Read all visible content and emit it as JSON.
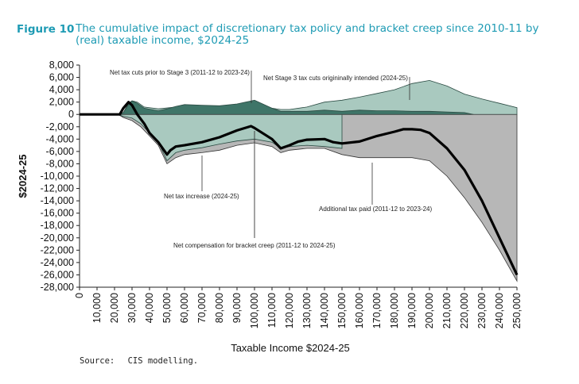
{
  "figure": {
    "number": "Figure 10",
    "title": "The cumulative impact of discretionary tax policy and bracket creep since 2010-11 by (real) taxable income, $2024-25"
  },
  "source": {
    "label": "Source:",
    "text": "CIS modelling."
  },
  "colors": {
    "grey": "#b7b7b7",
    "grey_stroke": "#333333",
    "dark_teal": "#3f7568",
    "light_teal": "#a9c9bf",
    "teal_stroke": "#2a4a42",
    "net_line": "#000000",
    "title": "#1e9bb4"
  },
  "chart_data": {
    "type": "area",
    "xlabel": "Taxable Income $2024-25",
    "ylabel": "$2024-25",
    "xlim": [
      0,
      250000
    ],
    "ylim": [
      -28000,
      8000
    ],
    "x_ticks": [
      "0",
      "10,000",
      "20,000",
      "30,000",
      "40,000",
      "50,000",
      "60,000",
      "70,000",
      "80,000",
      "90,000",
      "100,000",
      "110,000",
      "120,000",
      "130,000",
      "140,000",
      "150,000",
      "160,000",
      "170,000",
      "180,000",
      "190,000",
      "200,000",
      "210,000",
      "220,000",
      "230,000",
      "240,000",
      "250,000"
    ],
    "y_ticks": [
      "8,000",
      "6,000",
      "4,000",
      "2,000",
      "0",
      "-2,000",
      "-4,000",
      "-6,000",
      "-8,000",
      "-10,000",
      "-12,000",
      "-14,000",
      "-16,000",
      "-18,000",
      "-20,000",
      "-22,000",
      "-24,000",
      "-26,000",
      "-28,000"
    ],
    "series": [
      {
        "key": "additional_tax",
        "x": [
          0,
          22000,
          25000,
          30000,
          35000,
          40000,
          45000,
          50000,
          55000,
          60000,
          70000,
          80000,
          90000,
          100000,
          110000,
          115000,
          120000,
          130000,
          140000,
          150000,
          160000,
          170000,
          180000,
          190000,
          200000,
          210000,
          220000,
          230000,
          240000,
          250000
        ],
        "y": [
          0,
          0,
          -500,
          -1000,
          -2000,
          -3500,
          -5000,
          -8000,
          -7000,
          -6500,
          -6200,
          -5800,
          -5000,
          -4600,
          -5200,
          -6200,
          -5800,
          -5500,
          -5500,
          -6500,
          -7000,
          -7000,
          -7000,
          -7000,
          -7500,
          -10000,
          -13500,
          -17500,
          -22000,
          -27000
        ]
      },
      {
        "key": "net_tax_increase",
        "x": [
          0,
          22000,
          25000,
          30000,
          35000,
          40000,
          45000,
          50000,
          55000,
          60000,
          70000,
          80000,
          90000,
          100000,
          110000,
          115000,
          120000,
          130000,
          140000,
          150000
        ],
        "y": [
          0,
          0,
          -300,
          -600,
          -1500,
          -3000,
          -4500,
          -7500,
          -6200,
          -5800,
          -5400,
          -4800,
          -4300,
          -4000,
          -4500,
          -5500,
          -5200,
          -5000,
          -5200,
          -5500
        ]
      },
      {
        "key": "stage3_intended",
        "x": [
          0,
          22000,
          25000,
          28000,
          30000,
          33000,
          37000,
          45000,
          55000,
          70000,
          90000,
          100000,
          110000,
          115000,
          120000,
          130000,
          140000,
          150000,
          160000,
          170000,
          180000,
          190000,
          200000,
          210000,
          220000,
          230000,
          240000,
          250000
        ],
        "y": [
          0,
          0,
          300,
          1800,
          2200,
          2000,
          1200,
          900,
          1200,
          1200,
          1300,
          1500,
          1000,
          800,
          800,
          1200,
          2000,
          2300,
          2800,
          3400,
          4000,
          5000,
          5500,
          4600,
          3300,
          2500,
          1800,
          1100
        ]
      },
      {
        "key": "prior_tax_cuts",
        "x": [
          0,
          22000,
          25000,
          28000,
          30000,
          33000,
          37000,
          45000,
          50000,
          55000,
          60000,
          70000,
          80000,
          90000,
          95000,
          100000,
          110000,
          115000,
          120000,
          130000,
          140000,
          150000,
          160000,
          170000,
          180000,
          190000,
          200000,
          210000,
          220000,
          225000
        ],
        "y": [
          0,
          0,
          300,
          1600,
          2200,
          1800,
          1000,
          600,
          900,
          1300,
          1600,
          1500,
          1400,
          1700,
          2000,
          2300,
          1000,
          500,
          500,
          500,
          700,
          500,
          700,
          600,
          600,
          500,
          500,
          400,
          300,
          0
        ]
      },
      {
        "key": "net_impact",
        "x": [
          0,
          20000,
          23000,
          25000,
          28000,
          30000,
          33000,
          37000,
          40000,
          45000,
          50000,
          52000,
          55000,
          60000,
          70000,
          80000,
          90000,
          98000,
          100000,
          110000,
          115000,
          120000,
          125000,
          130000,
          140000,
          145000,
          150000,
          160000,
          170000,
          180000,
          185000,
          190000,
          195000,
          200000,
          210000,
          220000,
          230000,
          240000,
          250000
        ],
        "y": [
          0,
          0,
          0,
          1000,
          2000,
          1500,
          0,
          -1500,
          -3000,
          -4500,
          -6500,
          -5800,
          -5200,
          -5000,
          -4500,
          -3700,
          -2600,
          -1900,
          -2200,
          -4000,
          -5500,
          -5000,
          -4400,
          -4100,
          -4000,
          -4500,
          -4700,
          -4400,
          -3500,
          -2800,
          -2400,
          -2400,
          -2500,
          -3000,
          -5500,
          -9000,
          -14000,
          -20000,
          -26000
        ]
      }
    ],
    "annotations": [
      {
        "key": "ann_prior",
        "text": "Net tax cuts prior to Stage 3 (2011-12 to 2023-24)",
        "at": [
          95000,
          7000
        ]
      },
      {
        "key": "ann_stage3",
        "text": "Net Stage 3 tax cuts origininally intended (2024-25)",
        "at": [
          160000,
          6000
        ]
      },
      {
        "key": "ann_netinc",
        "text": "Net tax increase (2024-25)",
        "at": [
          56000,
          -13000
        ]
      },
      {
        "key": "ann_addtax",
        "text": "Additional tax paid (2011-12 to 2023-24)",
        "at": [
          190000,
          -15000
        ]
      },
      {
        "key": "ann_comp",
        "text": "Net compensation for bracket creep (2011-12 to 2024-25)",
        "at": [
          100000,
          -21000
        ]
      }
    ]
  }
}
